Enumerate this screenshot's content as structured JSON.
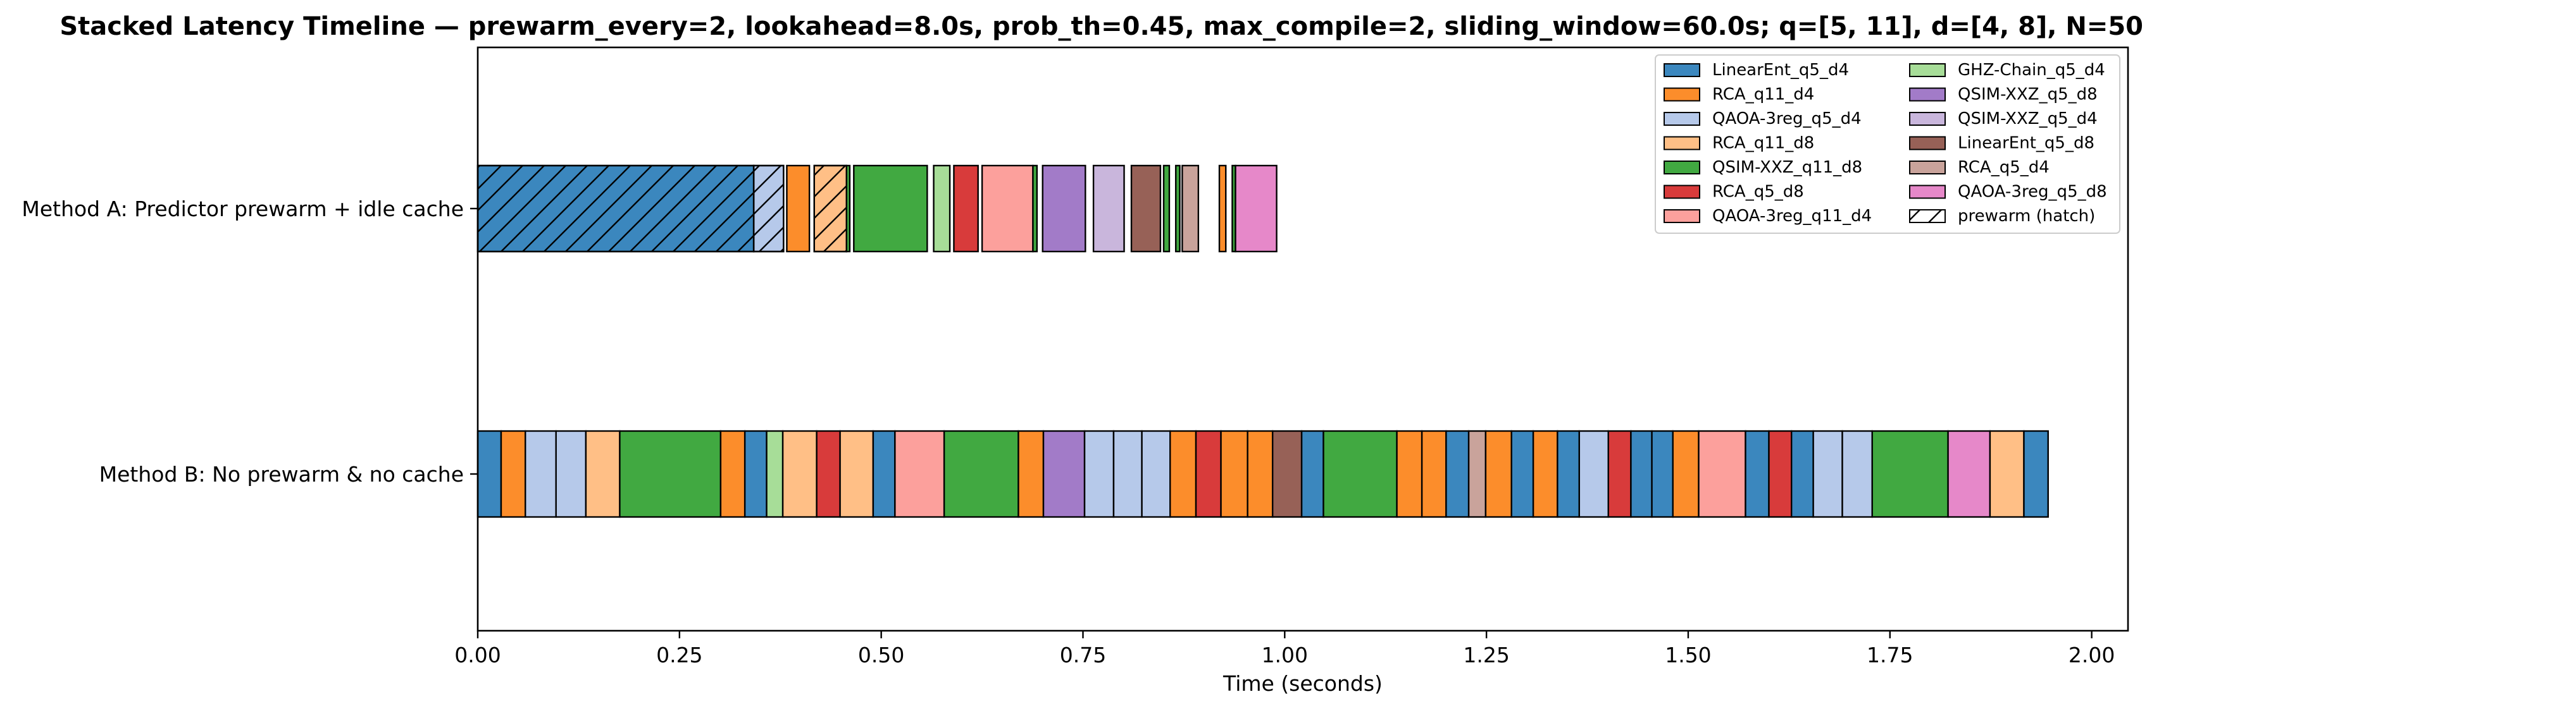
{
  "chart_data": {
    "type": "bar",
    "orientation": "horizontal",
    "stacked": true,
    "title": "Stacked Latency Timeline — prewarm_every=2, lookahead=8.0s, prob_th=0.45, max_compile=2, sliding_window=60.0s; q=[5, 11], d=[4, 8], N=50",
    "xlabel": "Time (seconds)",
    "ylabel": "",
    "xlim": [
      0,
      2.045
    ],
    "x_ticks": [
      "0.00",
      "0.25",
      "0.50",
      "0.75",
      "1.00",
      "1.25",
      "1.50",
      "1.75",
      "2.00"
    ],
    "x_tick_values": [
      0,
      0.25,
      0.5,
      0.75,
      1.0,
      1.25,
      1.5,
      1.75,
      2.0
    ],
    "categories": [
      "Method A: Predictor prewarm + idle cache",
      "Method B: No prewarm & no cache"
    ],
    "grid": false,
    "legend_position": "top-right",
    "legend": [
      {
        "label": "LinearEnt_q5_d4",
        "color": "#3b87be",
        "hatch": false
      },
      {
        "label": "RCA_q11_d4",
        "color": "#fc8d2b",
        "hatch": false
      },
      {
        "label": "QAOA-3reg_q5_d4",
        "color": "#b6c9ea",
        "hatch": false
      },
      {
        "label": "RCA_q11_d8",
        "color": "#ffbf86",
        "hatch": false
      },
      {
        "label": "QSIM-XXZ_q11_d8",
        "color": "#41a941",
        "hatch": false
      },
      {
        "label": "RCA_q5_d8",
        "color": "#d83b3b",
        "hatch": false
      },
      {
        "label": "QAOA-3reg_q11_d4",
        "color": "#fca09c",
        "hatch": false
      },
      {
        "label": "GHZ-Chain_q5_d4",
        "color": "#a7dd98",
        "hatch": false
      },
      {
        "label": "QSIM-XXZ_q5_d8",
        "color": "#a27bc8",
        "hatch": false
      },
      {
        "label": "QSIM-XXZ_q5_d4",
        "color": "#c9b6dc",
        "hatch": false
      },
      {
        "label": "LinearEnt_q5_d8",
        "color": "#976157",
        "hatch": false
      },
      {
        "label": "RCA_q5_d4",
        "color": "#c9a39b",
        "hatch": false
      },
      {
        "label": "QAOA-3reg_q5_d8",
        "color": "#e688c9",
        "hatch": false
      },
      {
        "label": "prewarm (hatch)",
        "color": "#ffffff",
        "hatch": true
      }
    ],
    "series": [
      {
        "category": "Method A: Predictor prewarm + idle cache",
        "segments": [
          {
            "circuit": "LinearEnt_q5_d4",
            "start": 0.0,
            "duration": 0.342,
            "prewarm": true
          },
          {
            "circuit": "QAOA-3reg_q5_d4",
            "start": 0.342,
            "duration": 0.037,
            "prewarm": true
          },
          {
            "circuit": "RCA_q11_d4",
            "start": 0.383,
            "duration": 0.028,
            "prewarm": false
          },
          {
            "circuit": "RCA_q11_d8",
            "start": 0.417,
            "duration": 0.04,
            "prewarm": true
          },
          {
            "circuit": "QSIM-XXZ_q11_d8",
            "start": 0.457,
            "duration": 0.004,
            "prewarm": false
          },
          {
            "circuit": "QSIM-XXZ_q11_d8",
            "start": 0.466,
            "duration": 0.091,
            "prewarm": false
          },
          {
            "circuit": "GHZ-Chain_q5_d4",
            "start": 0.565,
            "duration": 0.02,
            "prewarm": false
          },
          {
            "circuit": "RCA_q5_d8",
            "start": 0.59,
            "duration": 0.03,
            "prewarm": false
          },
          {
            "circuit": "QAOA-3reg_q11_d4",
            "start": 0.625,
            "duration": 0.063,
            "prewarm": false
          },
          {
            "circuit": "QSIM-XXZ_q11_d8",
            "start": 0.688,
            "duration": 0.005,
            "prewarm": false
          },
          {
            "circuit": "QSIM-XXZ_q5_d8",
            "start": 0.7,
            "duration": 0.053,
            "prewarm": false
          },
          {
            "circuit": "QSIM-XXZ_q5_d4",
            "start": 0.763,
            "duration": 0.038,
            "prewarm": false
          },
          {
            "circuit": "LinearEnt_q5_d8",
            "start": 0.81,
            "duration": 0.036,
            "prewarm": false
          },
          {
            "circuit": "QSIM-XXZ_q11_d8",
            "start": 0.85,
            "duration": 0.007,
            "prewarm": false
          },
          {
            "circuit": "QSIM-XXZ_q11_d8",
            "start": 0.865,
            "duration": 0.005,
            "prewarm": false
          },
          {
            "circuit": "RCA_q5_d4",
            "start": 0.873,
            "duration": 0.02,
            "prewarm": false
          },
          {
            "circuit": "RCA_q11_d4",
            "start": 0.919,
            "duration": 0.008,
            "prewarm": false
          },
          {
            "circuit": "QSIM-XXZ_q11_d8",
            "start": 0.935,
            "duration": 0.004,
            "prewarm": false
          },
          {
            "circuit": "QAOA-3reg_q5_d8",
            "start": 0.939,
            "duration": 0.051,
            "prewarm": false
          }
        ]
      },
      {
        "category": "Method B: No prewarm & no cache",
        "segments": [
          {
            "circuit": "LinearEnt_q5_d4",
            "start": 0.0,
            "duration": 0.029,
            "prewarm": false
          },
          {
            "circuit": "RCA_q11_d4",
            "start": 0.029,
            "duration": 0.03,
            "prewarm": false
          },
          {
            "circuit": "QAOA-3reg_q5_d4",
            "start": 0.059,
            "duration": 0.038,
            "prewarm": false
          },
          {
            "circuit": "QAOA-3reg_q5_d4",
            "start": 0.097,
            "duration": 0.037,
            "prewarm": false
          },
          {
            "circuit": "RCA_q11_d8",
            "start": 0.134,
            "duration": 0.042,
            "prewarm": false
          },
          {
            "circuit": "QSIM-XXZ_q11_d8",
            "start": 0.176,
            "duration": 0.125,
            "prewarm": false
          },
          {
            "circuit": "RCA_q11_d4",
            "start": 0.301,
            "duration": 0.03,
            "prewarm": false
          },
          {
            "circuit": "LinearEnt_q5_d4",
            "start": 0.331,
            "duration": 0.027,
            "prewarm": false
          },
          {
            "circuit": "GHZ-Chain_q5_d4",
            "start": 0.358,
            "duration": 0.02,
            "prewarm": false
          },
          {
            "circuit": "RCA_q11_d8",
            "start": 0.378,
            "duration": 0.042,
            "prewarm": false
          },
          {
            "circuit": "RCA_q5_d8",
            "start": 0.42,
            "duration": 0.029,
            "prewarm": false
          },
          {
            "circuit": "RCA_q11_d8",
            "start": 0.449,
            "duration": 0.041,
            "prewarm": false
          },
          {
            "circuit": "LinearEnt_q5_d4",
            "start": 0.49,
            "duration": 0.027,
            "prewarm": false
          },
          {
            "circuit": "QAOA-3reg_q11_d4",
            "start": 0.517,
            "duration": 0.061,
            "prewarm": false
          },
          {
            "circuit": "QSIM-XXZ_q11_d8",
            "start": 0.578,
            "duration": 0.092,
            "prewarm": false
          },
          {
            "circuit": "RCA_q11_d4",
            "start": 0.67,
            "duration": 0.031,
            "prewarm": false
          },
          {
            "circuit": "QSIM-XXZ_q5_d8",
            "start": 0.701,
            "duration": 0.051,
            "prewarm": false
          },
          {
            "circuit": "QAOA-3reg_q5_d4",
            "start": 0.752,
            "duration": 0.036,
            "prewarm": false
          },
          {
            "circuit": "QAOA-3reg_q5_d4",
            "start": 0.788,
            "duration": 0.035,
            "prewarm": false
          },
          {
            "circuit": "QAOA-3reg_q5_d4",
            "start": 0.823,
            "duration": 0.035,
            "prewarm": false
          },
          {
            "circuit": "RCA_q11_d4",
            "start": 0.858,
            "duration": 0.032,
            "prewarm": false
          },
          {
            "circuit": "RCA_q5_d8",
            "start": 0.89,
            "duration": 0.031,
            "prewarm": false
          },
          {
            "circuit": "RCA_q11_d4",
            "start": 0.921,
            "duration": 0.033,
            "prewarm": false
          },
          {
            "circuit": "RCA_q11_d4",
            "start": 0.954,
            "duration": 0.031,
            "prewarm": false
          },
          {
            "circuit": "LinearEnt_q5_d8",
            "start": 0.985,
            "duration": 0.036,
            "prewarm": false
          },
          {
            "circuit": "LinearEnt_q5_d4",
            "start": 1.021,
            "duration": 0.027,
            "prewarm": false
          },
          {
            "circuit": "QSIM-XXZ_q11_d8",
            "start": 1.048,
            "duration": 0.091,
            "prewarm": false
          },
          {
            "circuit": "RCA_q11_d4",
            "start": 1.139,
            "duration": 0.031,
            "prewarm": false
          },
          {
            "circuit": "RCA_q11_d4",
            "start": 1.17,
            "duration": 0.03,
            "prewarm": false
          },
          {
            "circuit": "LinearEnt_q5_d4",
            "start": 1.2,
            "duration": 0.028,
            "prewarm": false
          },
          {
            "circuit": "RCA_q5_d4",
            "start": 1.228,
            "duration": 0.021,
            "prewarm": false
          },
          {
            "circuit": "RCA_q11_d4",
            "start": 1.249,
            "duration": 0.032,
            "prewarm": false
          },
          {
            "circuit": "LinearEnt_q5_d4",
            "start": 1.281,
            "duration": 0.027,
            "prewarm": false
          },
          {
            "circuit": "RCA_q11_d4",
            "start": 1.308,
            "duration": 0.03,
            "prewarm": false
          },
          {
            "circuit": "LinearEnt_q5_d4",
            "start": 1.338,
            "duration": 0.027,
            "prewarm": false
          },
          {
            "circuit": "QAOA-3reg_q5_d4",
            "start": 1.365,
            "duration": 0.036,
            "prewarm": false
          },
          {
            "circuit": "RCA_q5_d8",
            "start": 1.401,
            "duration": 0.028,
            "prewarm": false
          },
          {
            "circuit": "LinearEnt_q5_d4",
            "start": 1.429,
            "duration": 0.026,
            "prewarm": false
          },
          {
            "circuit": "LinearEnt_q5_d4",
            "start": 1.455,
            "duration": 0.026,
            "prewarm": false
          },
          {
            "circuit": "RCA_q11_d4",
            "start": 1.481,
            "duration": 0.032,
            "prewarm": false
          },
          {
            "circuit": "QAOA-3reg_q11_d4",
            "start": 1.513,
            "duration": 0.058,
            "prewarm": false
          },
          {
            "circuit": "LinearEnt_q5_d4",
            "start": 1.571,
            "duration": 0.029,
            "prewarm": false
          },
          {
            "circuit": "RCA_q5_d8",
            "start": 1.6,
            "duration": 0.028,
            "prewarm": false
          },
          {
            "circuit": "LinearEnt_q5_d4",
            "start": 1.628,
            "duration": 0.027,
            "prewarm": false
          },
          {
            "circuit": "QAOA-3reg_q5_d4",
            "start": 1.655,
            "duration": 0.036,
            "prewarm": false
          },
          {
            "circuit": "QAOA-3reg_q5_d4",
            "start": 1.691,
            "duration": 0.037,
            "prewarm": false
          },
          {
            "circuit": "QSIM-XXZ_q11_d8",
            "start": 1.728,
            "duration": 0.094,
            "prewarm": false
          },
          {
            "circuit": "QAOA-3reg_q5_d8",
            "start": 1.822,
            "duration": 0.052,
            "prewarm": false
          },
          {
            "circuit": "RCA_q11_d8",
            "start": 1.874,
            "duration": 0.042,
            "prewarm": false
          },
          {
            "circuit": "LinearEnt_q5_d4",
            "start": 1.916,
            "duration": 0.03,
            "prewarm": false
          }
        ]
      }
    ]
  }
}
